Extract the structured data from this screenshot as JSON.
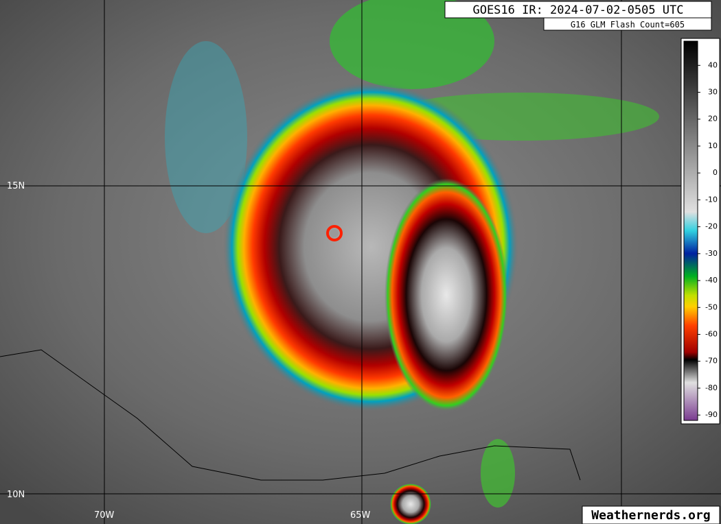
{
  "header": {
    "title": "GOES16 IR: 2024-07-02-0505 UTC",
    "flash_count": "G16 GLM Flash Count=605"
  },
  "colorbar": {
    "ticks": [
      40,
      30,
      20,
      10,
      0,
      -10,
      -20,
      -30,
      -40,
      -50,
      -60,
      -70,
      -80,
      -90
    ],
    "lim": [
      49,
      -92
    ]
  },
  "grid": {
    "latitudes": [
      "15N",
      "10N"
    ],
    "longitudes": [
      "70W",
      "65W"
    ]
  },
  "footer": {
    "watermark": "Weathernerds.org"
  }
}
